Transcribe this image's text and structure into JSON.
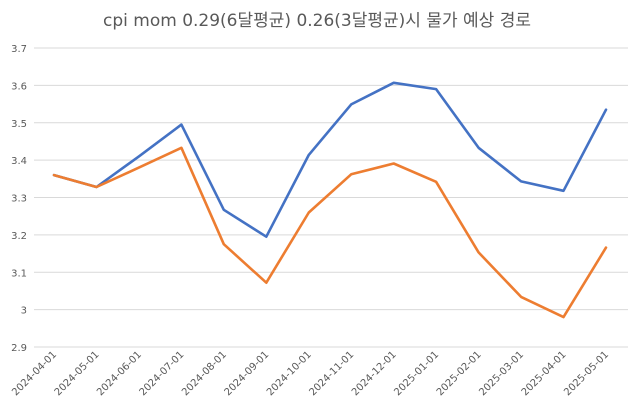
{
  "chart_data": {
    "type": "line",
    "title": "cpi mom 0.29(6달평균) 0.26(3달평균)시 물가 예상 경로",
    "xlabel": "",
    "ylabel": "",
    "ylim": [
      2.9,
      3.7
    ],
    "yticks": [
      "2.9",
      "3",
      "3.1",
      "3.2",
      "3.3",
      "3.4",
      "3.5",
      "3.6",
      "3.7"
    ],
    "grid": true,
    "legend": "none",
    "categories": [
      "2024-04-01",
      "2024-05-01",
      "2024-06-01",
      "2024-07-01",
      "2024-08-01",
      "2024-09-01",
      "2024-10-01",
      "2024-11-01",
      "2024-12-01",
      "2025-01-01",
      "2025-02-01",
      "2025-03-01",
      "2025-04-01",
      "2025-05-01"
    ],
    "series": [
      {
        "color": "#4472C4",
        "values": [
          3.36,
          3.328,
          3.41,
          3.495,
          3.267,
          3.195,
          3.414,
          3.549,
          3.607,
          3.59,
          3.433,
          3.343,
          3.318,
          3.535
        ]
      },
      {
        "color": "#ED7D31",
        "values": [
          3.36,
          3.328,
          3.38,
          3.433,
          3.175,
          3.072,
          3.26,
          3.362,
          3.391,
          3.342,
          3.153,
          3.034,
          2.98,
          3.166
        ]
      }
    ]
  }
}
